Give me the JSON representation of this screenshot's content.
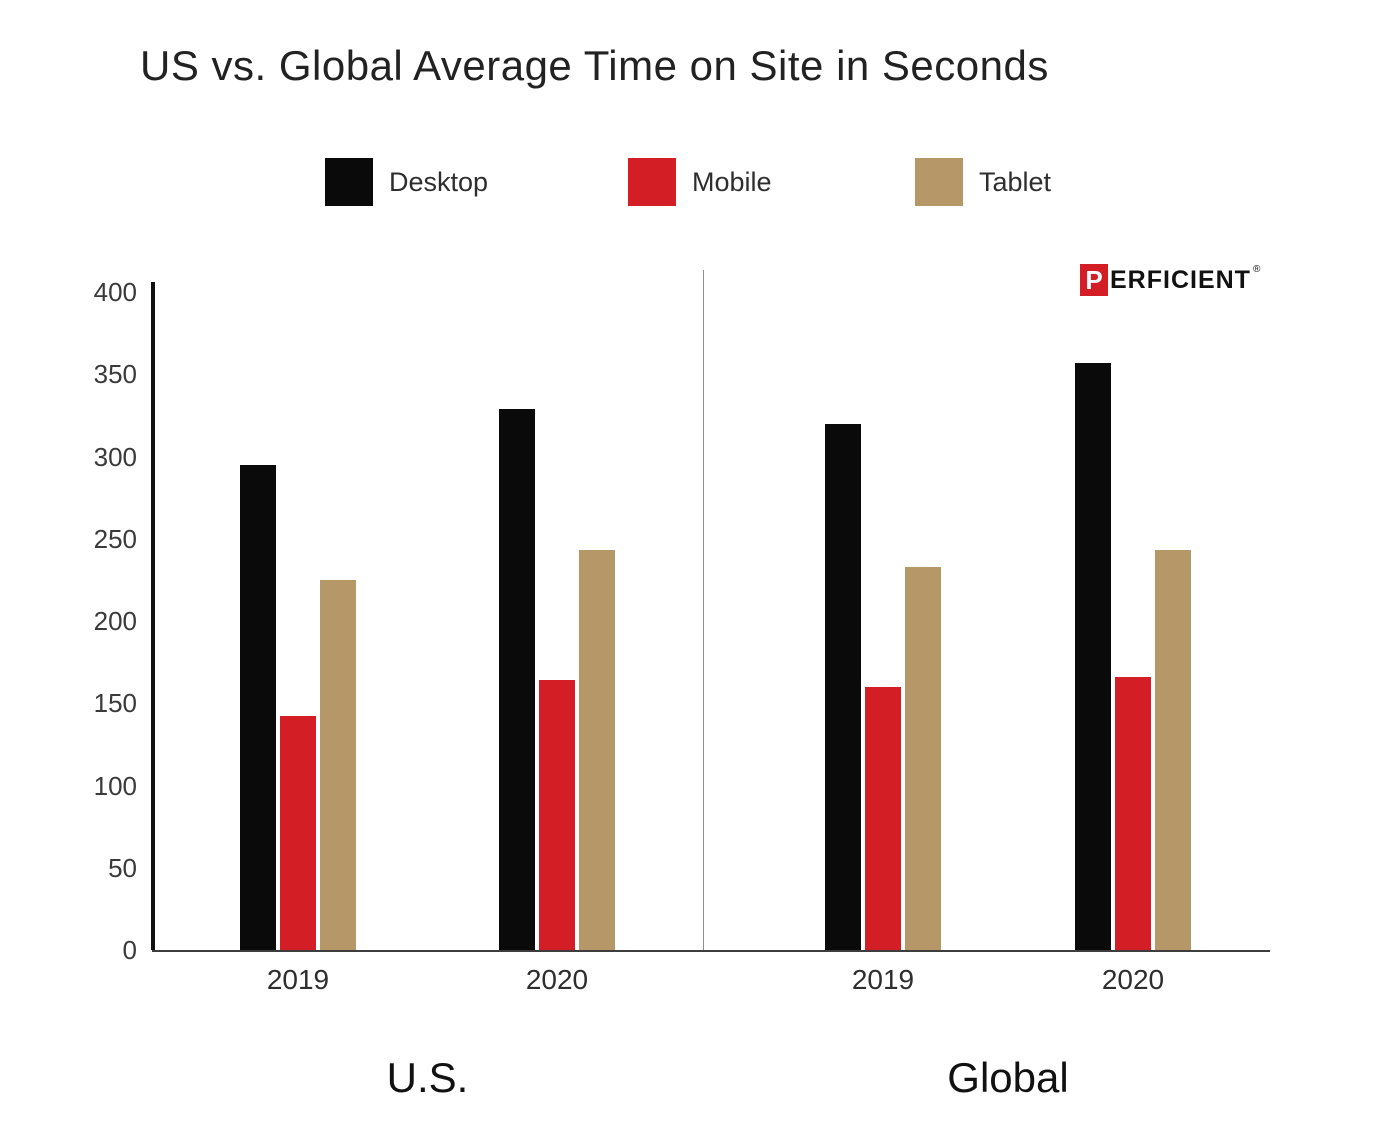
{
  "title": "US vs. Global Average Time on Site in Seconds",
  "logo": {
    "mark": "P",
    "text": "ERFICIENT",
    "reg": "®"
  },
  "legend": [
    {
      "label": "Desktop",
      "color": "#0a0a0a"
    },
    {
      "label": "Mobile",
      "color": "#d41e26"
    },
    {
      "label": "Tablet",
      "color": "#b69768"
    }
  ],
  "chart_data": {
    "type": "bar",
    "title": "US vs. Global Average Time on Site in Seconds",
    "xlabel": "",
    "ylabel": "",
    "ylim": [
      0,
      400
    ],
    "yticks": [
      0,
      50,
      100,
      150,
      200,
      250,
      300,
      350,
      400
    ],
    "grid": false,
    "legend_position": "top",
    "groups": [
      {
        "label": "U.S.",
        "categories": [
          "2019",
          "2020"
        ],
        "series": [
          {
            "name": "Desktop",
            "values": [
              295,
              329
            ]
          },
          {
            "name": "Mobile",
            "values": [
              142,
              164
            ]
          },
          {
            "name": "Tablet",
            "values": [
              225,
              243
            ]
          }
        ]
      },
      {
        "label": "Global",
        "categories": [
          "2019",
          "2020"
        ],
        "series": [
          {
            "name": "Desktop",
            "values": [
              320,
              357
            ]
          },
          {
            "name": "Mobile",
            "values": [
              160,
              166
            ]
          },
          {
            "name": "Tablet",
            "values": [
              233,
              243
            ]
          }
        ]
      }
    ]
  }
}
